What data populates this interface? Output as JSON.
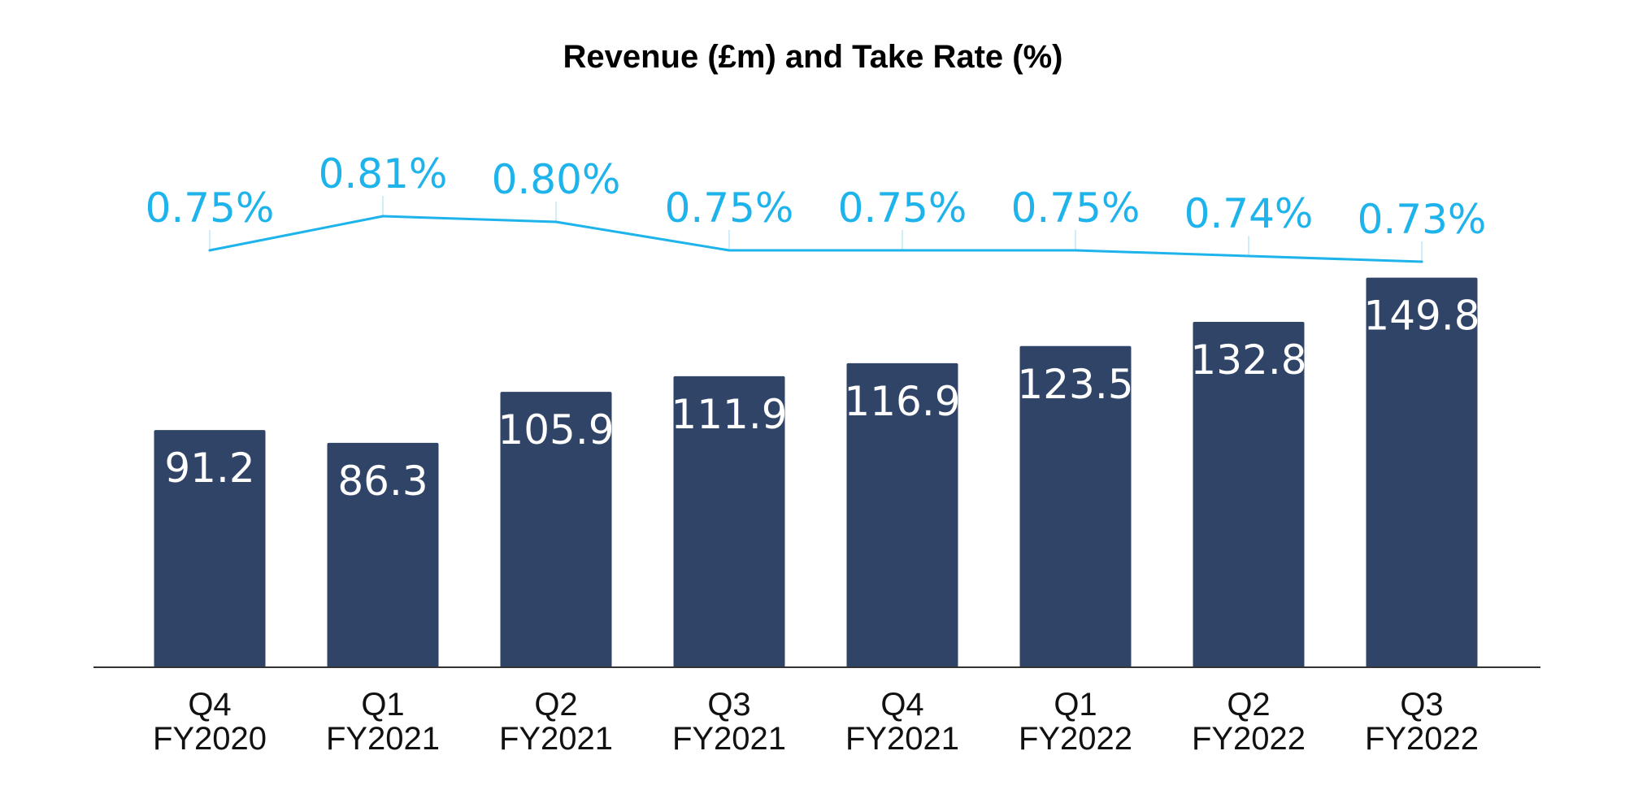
{
  "chart_data": {
    "type": "bar",
    "title": "Revenue (£m) and Take Rate (%)",
    "xlabel": "",
    "ylabel": "",
    "categories": [
      [
        "Q4",
        "FY2020"
      ],
      [
        "Q1",
        "FY2021"
      ],
      [
        "Q2",
        "FY2021"
      ],
      [
        "Q3",
        "FY2021"
      ],
      [
        "Q4",
        "FY2021"
      ],
      [
        "Q1",
        "FY2022"
      ],
      [
        "Q2",
        "FY2022"
      ],
      [
        "Q3",
        "FY2022"
      ]
    ],
    "series": [
      {
        "type": "bar",
        "values": [
          91.2,
          86.3,
          105.9,
          111.9,
          116.9,
          123.5,
          132.8,
          149.8
        ],
        "labels": [
          "91.2",
          "86.3",
          "105.9",
          "111.9",
          "116.9",
          "123.5",
          "132.8",
          "149.8"
        ],
        "color": "#304468"
      },
      {
        "type": "line",
        "values": [
          0.75,
          0.81,
          0.8,
          0.75,
          0.75,
          0.75,
          0.74,
          0.73
        ],
        "labels": [
          "0.75%",
          "0.81%",
          "0.80%",
          "0.75%",
          "0.75%",
          "0.75%",
          "0.74%",
          "0.73%"
        ],
        "color": "#1EB4EB"
      }
    ],
    "ylim": [
      0,
      200
    ],
    "grid": false,
    "legend": "none"
  }
}
